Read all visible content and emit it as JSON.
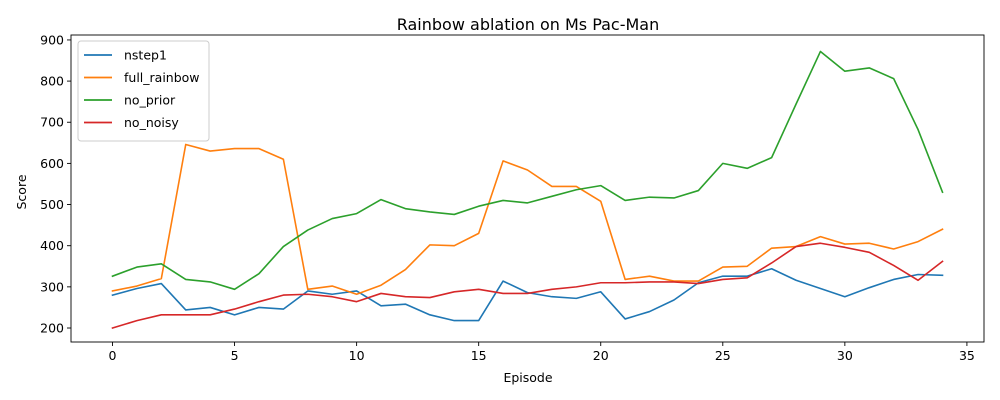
{
  "chart_data": {
    "type": "line",
    "title": "Rainbow ablation on Ms Pac-Man",
    "xlabel": "Episode",
    "ylabel": "Score",
    "xlim": [
      -1.7,
      35.7
    ],
    "ylim": [
      166,
      912
    ],
    "xticks": [
      0,
      5,
      10,
      15,
      20,
      25,
      30,
      35
    ],
    "yticks": [
      200,
      300,
      400,
      500,
      600,
      700,
      800,
      900
    ],
    "legend_position": "upper-left",
    "grid": false,
    "x": [
      0,
      1,
      2,
      3,
      4,
      5,
      6,
      7,
      8,
      9,
      10,
      11,
      12,
      13,
      14,
      15,
      16,
      17,
      18,
      19,
      20,
      21,
      22,
      23,
      24,
      25,
      26,
      27,
      28,
      29,
      30,
      31,
      32,
      33,
      34
    ],
    "series": [
      {
        "name": "nstep1",
        "color": "#1f77b4",
        "values": [
          280,
          296,
          308,
          244,
          250,
          232,
          250,
          246,
          290,
          282,
          290,
          254,
          258,
          232,
          218,
          218,
          314,
          286,
          276,
          272,
          288,
          222,
          240,
          268,
          310,
          326,
          326,
          344,
          316,
          296,
          276,
          298,
          318,
          330,
          328
        ]
      },
      {
        "name": "full_rainbow",
        "color": "#ff7f0e",
        "values": [
          290,
          302,
          320,
          646,
          630,
          636,
          636,
          610,
          294,
          302,
          282,
          304,
          342,
          402,
          400,
          430,
          606,
          584,
          544,
          544,
          508,
          318,
          326,
          314,
          314,
          348,
          350,
          394,
          398,
          422,
          404,
          406,
          392,
          410,
          440
        ]
      },
      {
        "name": "no_prior",
        "color": "#2ca02c",
        "values": [
          326,
          348,
          356,
          318,
          312,
          294,
          332,
          398,
          438,
          466,
          478,
          512,
          490,
          482,
          476,
          496,
          510,
          504,
          520,
          536,
          546,
          510,
          518,
          516,
          534,
          600,
          588,
          614,
          744,
          872,
          824,
          832,
          806,
          682,
          530
        ]
      },
      {
        "name": "no_noisy",
        "color": "#d62728",
        "values": [
          200,
          218,
          232,
          232,
          232,
          246,
          264,
          280,
          282,
          276,
          264,
          284,
          276,
          274,
          288,
          294,
          284,
          284,
          294,
          300,
          310,
          310,
          312,
          312,
          308,
          318,
          322,
          358,
          398,
          406,
          396,
          384,
          352,
          316,
          362
        ]
      }
    ]
  }
}
